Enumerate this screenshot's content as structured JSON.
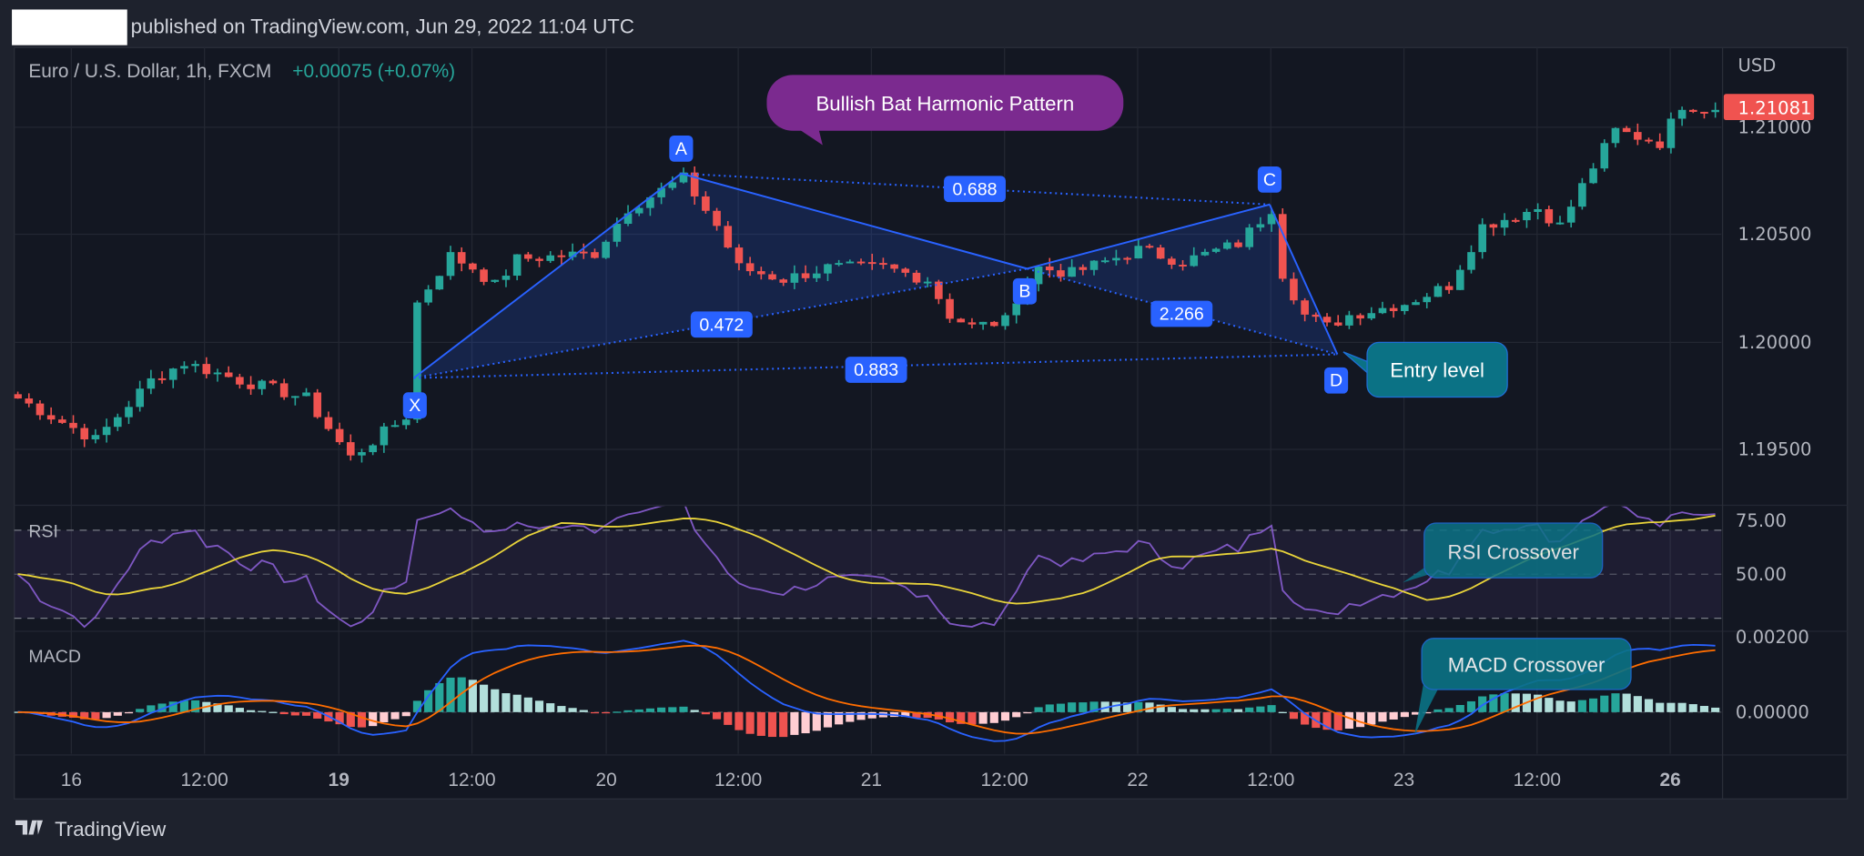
{
  "header": {
    "published": "published on TradingView.com, Jun 29, 2022 11:04 UTC"
  },
  "symbol": {
    "title": "Euro / U.S. Dollar, 1h, FXCM",
    "change": "+0.00075 (+0.07%)"
  },
  "price_axis": {
    "currency": "USD",
    "ticks": [
      "1.21000",
      "1.20500",
      "1.20000",
      "1.19500"
    ],
    "last_price": "1.21081"
  },
  "rsi": {
    "label": "RSI",
    "ticks": [
      "75.00",
      "50.00"
    ]
  },
  "macd": {
    "label": "MACD",
    "ticks": [
      "0.00200",
      "0.00000"
    ]
  },
  "time_axis": [
    "16",
    "12:00",
    "19",
    "12:00",
    "20",
    "12:00",
    "21",
    "12:00",
    "22",
    "12:00",
    "23",
    "12:00",
    "26"
  ],
  "pattern": {
    "title": "Bullish Bat Harmonic Pattern",
    "points": [
      "X",
      "A",
      "B",
      "C",
      "D"
    ],
    "ratios": {
      "xb": "0.472",
      "ac": "0.688",
      "bd": "2.266",
      "xd": "0.883"
    },
    "entry": "Entry level"
  },
  "annotations": {
    "rsi": "RSI Crossover",
    "macd": "MACD Crossover"
  },
  "brand": "TradingView",
  "colors": {
    "up": "#26a69a",
    "down": "#ef5350",
    "pattern": "#2962ff",
    "rsi": "#7e57c2",
    "rsi_ma": "#e8d33a",
    "macd": "#2962ff",
    "signal": "#ff6d00",
    "callout": "#0b7285",
    "title_callout": "#7b2a8f",
    "last_price": "#f05350"
  },
  "chart_data": {
    "type": "candlestick",
    "interval": "1h",
    "ylabel": "USD",
    "ylim": [
      1.1925,
      1.2125
    ],
    "close_keypoints": [
      [
        0,
        1.19733
      ],
      [
        5,
        1.19594
      ],
      [
        7,
        1.19539
      ],
      [
        12,
        1.19817
      ],
      [
        15,
        1.199
      ],
      [
        20,
        1.19817
      ],
      [
        26,
        1.19733
      ],
      [
        30,
        1.19456
      ],
      [
        35,
        1.1965
      ],
      [
        36,
        1.20178
      ],
      [
        39,
        1.204
      ],
      [
        41,
        1.20344
      ],
      [
        43,
        1.20261
      ],
      [
        45,
        1.20383
      ],
      [
        52,
        1.20411
      ],
      [
        55,
        1.20622
      ],
      [
        60,
        1.20761
      ],
      [
        63,
        1.20539
      ],
      [
        65,
        1.20344
      ],
      [
        69,
        1.20289
      ],
      [
        73,
        1.20344
      ],
      [
        78,
        1.20344
      ],
      [
        82,
        1.20289
      ],
      [
        84,
        1.20122
      ],
      [
        86,
        1.20067
      ],
      [
        89,
        1.20094
      ],
      [
        90,
        1.20206
      ],
      [
        92,
        1.20344
      ],
      [
        95,
        1.20317
      ],
      [
        101,
        1.20428
      ],
      [
        105,
        1.20372
      ],
      [
        110,
        1.20456
      ],
      [
        113,
        1.20622
      ],
      [
        114,
        1.20317
      ],
      [
        116,
        1.20122
      ],
      [
        118,
        1.20067
      ],
      [
        120,
        1.20122
      ],
      [
        125,
        1.20178
      ],
      [
        129,
        1.20261
      ],
      [
        132,
        1.20539
      ],
      [
        137,
        1.20622
      ],
      [
        139,
        1.20539
      ],
      [
        142,
        1.20817
      ],
      [
        144,
        1.20983
      ],
      [
        148,
        1.20928
      ],
      [
        150,
        1.21106
      ],
      [
        153,
        1.21081
      ]
    ],
    "pattern_prices": {
      "X": 1.1982,
      "A": 1.2078,
      "B": 1.2033,
      "C": 1.2063,
      "D": 1.1993
    },
    "rsi_levels": [
      70,
      50,
      30
    ]
  }
}
